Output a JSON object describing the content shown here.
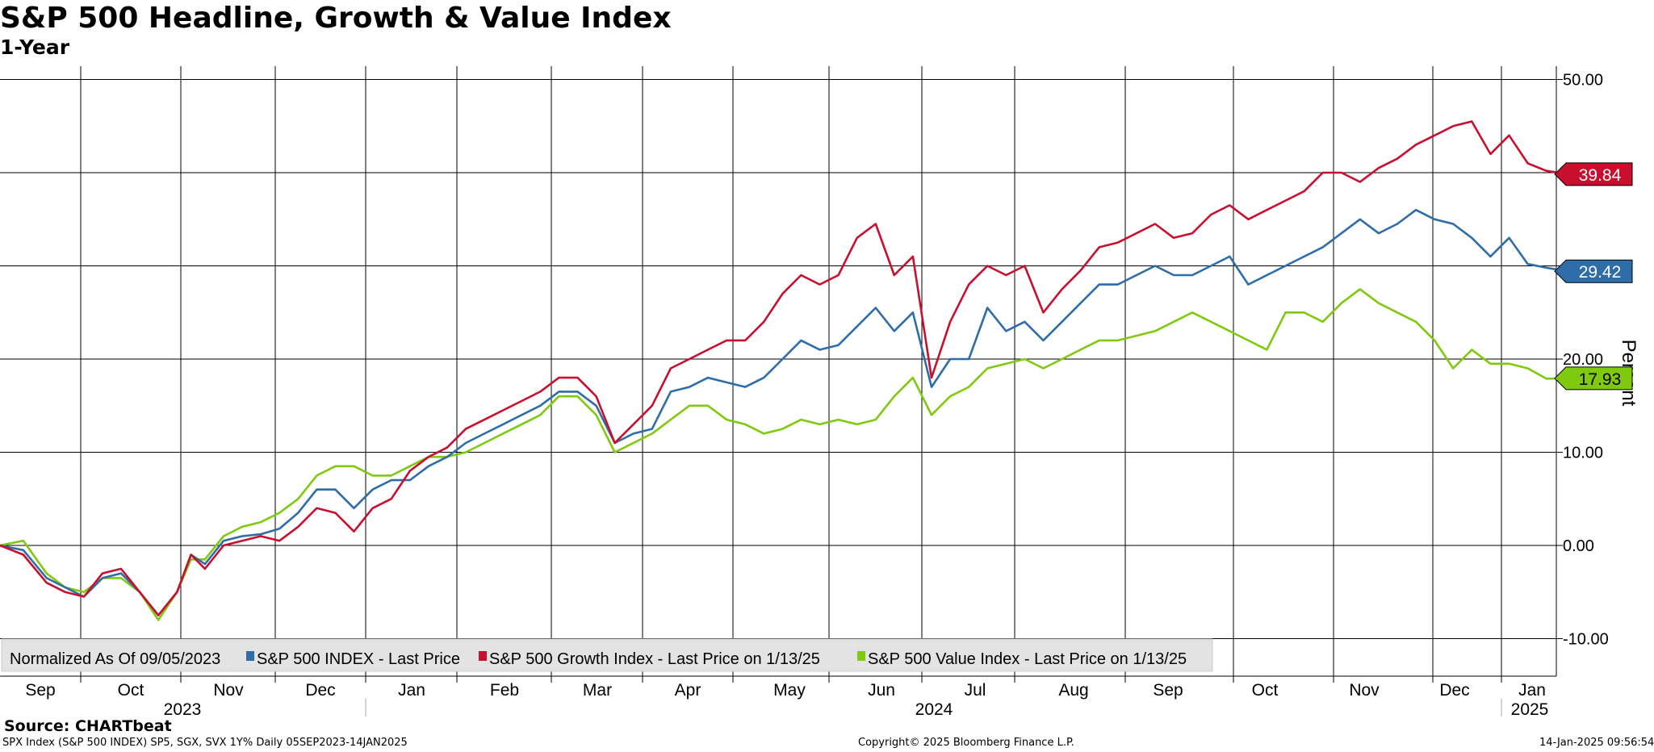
{
  "header": {
    "title": "S&P 500 Headline, Growth & Value Index",
    "subtitle": "1-Year"
  },
  "footer": {
    "source": "Source: CHARTbeat",
    "meta": "SPX Index (S&P 500 INDEX) SP5, SGX, SVX 1Y% Daily 05SEP2023-14JAN2025",
    "copyright": "Copyright© 2025 Bloomberg Finance L.P.",
    "timestamp": "14-Jan-2025 09:56:54"
  },
  "colors": {
    "headline": "#2e6da8",
    "growth": "#c8102e",
    "value": "#7fc90f",
    "grid": "#000000"
  },
  "chart_data": {
    "type": "line",
    "title": "S&P 500 Headline, Growth & Value Index",
    "subtitle": "1-Year",
    "ylabel": "Percent",
    "ylim": [
      -14,
      52
    ],
    "yticks": [
      -10,
      0,
      10,
      20,
      30,
      40,
      50
    ],
    "yticklabels": [
      "-10.00",
      "0.00",
      "10.00",
      "20.00",
      "",
      "",
      "50.00"
    ],
    "x_domain": [
      0,
      16.83
    ],
    "month_labels": [
      "Sep",
      "Oct",
      "Nov",
      "Dec",
      "Jan",
      "Feb",
      "Mar",
      "Apr",
      "May",
      "Jun",
      "Jul",
      "Aug",
      "Sep",
      "Oct",
      "Nov",
      "Dec",
      "Jan"
    ],
    "year_labels": [
      "2023",
      "2024",
      "2025"
    ],
    "legend_note": "Normalized As Of 09/05/2023",
    "series": [
      {
        "key": "headline",
        "name": "S&P 500 INDEX - Last Price",
        "last_value": "29.42",
        "x": [
          0,
          0.25,
          0.5,
          0.7,
          0.9,
          1.1,
          1.3,
          1.5,
          1.7,
          1.9,
          2.05,
          2.2,
          2.4,
          2.6,
          2.8,
          3.0,
          3.2,
          3.4,
          3.6,
          3.8,
          4.0,
          4.2,
          4.4,
          4.6,
          4.8,
          5.0,
          5.2,
          5.4,
          5.6,
          5.8,
          6.0,
          6.2,
          6.4,
          6.6,
          6.8,
          7.0,
          7.2,
          7.4,
          7.6,
          7.8,
          8.0,
          8.2,
          8.4,
          8.6,
          8.8,
          9.0,
          9.2,
          9.4,
          9.6,
          9.8,
          10.0,
          10.2,
          10.4,
          10.6,
          10.8,
          11.0,
          11.2,
          11.4,
          11.6,
          11.8,
          12.0,
          12.2,
          12.4,
          12.6,
          12.8,
          13.0,
          13.2,
          13.4,
          13.6,
          13.8,
          14.0,
          14.2,
          14.4,
          14.6,
          14.8,
          15.0,
          15.2,
          15.4,
          15.6,
          15.8,
          16.0,
          16.2,
          16.4,
          16.6,
          16.83
        ],
        "y": [
          0,
          -0.5,
          -3.5,
          -4.5,
          -5.5,
          -3.5,
          -3,
          -5,
          -7.5,
          -5,
          -1,
          -2,
          0.5,
          1,
          1.2,
          1.8,
          3.5,
          6,
          6,
          4,
          6,
          7,
          7,
          8.5,
          9.5,
          11,
          12,
          13,
          14,
          15,
          16.5,
          16.5,
          15,
          11,
          12,
          12.5,
          16.5,
          17,
          18,
          17.5,
          17,
          18,
          20,
          22,
          21,
          21.5,
          23.5,
          25.5,
          23,
          25,
          17,
          20,
          20,
          25.5,
          23,
          24,
          22,
          24,
          26,
          28,
          28,
          29,
          30,
          29,
          29,
          30,
          31,
          28,
          29,
          30,
          31,
          32,
          33.5,
          35,
          33.5,
          34.5,
          36,
          35,
          34.5,
          33,
          31,
          33,
          30.2,
          29.8,
          29.42
        ]
      },
      {
        "key": "growth",
        "name": "S&P 500 Growth Index - Last Price on 1/13/25",
        "last_value": "39.84",
        "x": [
          0,
          0.25,
          0.5,
          0.7,
          0.9,
          1.1,
          1.3,
          1.5,
          1.7,
          1.9,
          2.05,
          2.2,
          2.4,
          2.6,
          2.8,
          3.0,
          3.2,
          3.4,
          3.6,
          3.8,
          4.0,
          4.2,
          4.4,
          4.6,
          4.8,
          5.0,
          5.2,
          5.4,
          5.6,
          5.8,
          6.0,
          6.2,
          6.4,
          6.6,
          6.8,
          7.0,
          7.2,
          7.4,
          7.6,
          7.8,
          8.0,
          8.2,
          8.4,
          8.6,
          8.8,
          9.0,
          9.2,
          9.4,
          9.6,
          9.8,
          10.0,
          10.2,
          10.4,
          10.6,
          10.8,
          11.0,
          11.2,
          11.4,
          11.6,
          11.8,
          12.0,
          12.2,
          12.4,
          12.6,
          12.8,
          13.0,
          13.2,
          13.4,
          13.6,
          13.8,
          14.0,
          14.2,
          14.4,
          14.6,
          14.8,
          15.0,
          15.2,
          15.4,
          15.6,
          15.8,
          16.0,
          16.2,
          16.4,
          16.6,
          16.83
        ],
        "y": [
          0,
          -1,
          -4,
          -5,
          -5.5,
          -3,
          -2.5,
          -5,
          -7.5,
          -5,
          -1,
          -2.5,
          0,
          0.5,
          1,
          0.5,
          2,
          4,
          3.5,
          1.5,
          4,
          5,
          8,
          9.5,
          10.5,
          12.5,
          13.5,
          14.5,
          15.5,
          16.5,
          18,
          18,
          16,
          11,
          13,
          15,
          19,
          20,
          21,
          22,
          22,
          24,
          27,
          29,
          28,
          29,
          33,
          34.5,
          29,
          31,
          18,
          24,
          28,
          30,
          29,
          30,
          25,
          27.5,
          29.5,
          32,
          32.5,
          33.5,
          34.5,
          33,
          33.5,
          35.5,
          36.5,
          35,
          36,
          37,
          38,
          40,
          40,
          39,
          40.5,
          41.5,
          43,
          44,
          45,
          45.5,
          42,
          44,
          41,
          40.2,
          39.84
        ]
      },
      {
        "key": "value",
        "name": "S&P 500 Value Index - Last Price on 1/13/25",
        "last_value": "17.93",
        "x": [
          0,
          0.25,
          0.5,
          0.7,
          0.9,
          1.1,
          1.3,
          1.5,
          1.7,
          1.9,
          2.05,
          2.2,
          2.4,
          2.6,
          2.8,
          3.0,
          3.2,
          3.4,
          3.6,
          3.8,
          4.0,
          4.2,
          4.4,
          4.6,
          4.8,
          5.0,
          5.2,
          5.4,
          5.6,
          5.8,
          6.0,
          6.2,
          6.4,
          6.6,
          6.8,
          7.0,
          7.2,
          7.4,
          7.6,
          7.8,
          8.0,
          8.2,
          8.4,
          8.6,
          8.8,
          9.0,
          9.2,
          9.4,
          9.6,
          9.8,
          10.0,
          10.2,
          10.4,
          10.6,
          10.8,
          11.0,
          11.2,
          11.4,
          11.6,
          11.8,
          12.0,
          12.2,
          12.4,
          12.6,
          12.8,
          13.0,
          13.2,
          13.4,
          13.6,
          13.8,
          14.0,
          14.2,
          14.4,
          14.6,
          14.8,
          15.0,
          15.2,
          15.4,
          15.6,
          15.8,
          16.0,
          16.2,
          16.4,
          16.6,
          16.83
        ],
        "y": [
          0,
          0.5,
          -3,
          -4.5,
          -5,
          -3.5,
          -3.5,
          -5,
          -8,
          -5,
          -1.5,
          -1.5,
          1,
          2,
          2.5,
          3.5,
          5,
          7.5,
          8.5,
          8.5,
          7.5,
          7.5,
          8.5,
          9.5,
          9.5,
          10,
          11,
          12,
          13,
          14,
          16,
          16,
          14,
          10,
          11,
          12,
          13.5,
          15,
          15,
          13.5,
          13,
          12,
          12.5,
          13.5,
          13,
          13.5,
          13,
          13.5,
          16,
          18,
          14,
          16,
          17,
          19,
          19.5,
          20,
          19,
          20,
          21,
          22,
          22,
          22.5,
          23,
          24,
          25,
          24,
          23,
          22,
          21,
          25,
          25,
          24,
          26,
          27.5,
          26,
          25,
          24,
          22,
          19,
          21,
          19.5,
          19.5,
          19,
          17.9,
          17.93
        ]
      }
    ]
  }
}
